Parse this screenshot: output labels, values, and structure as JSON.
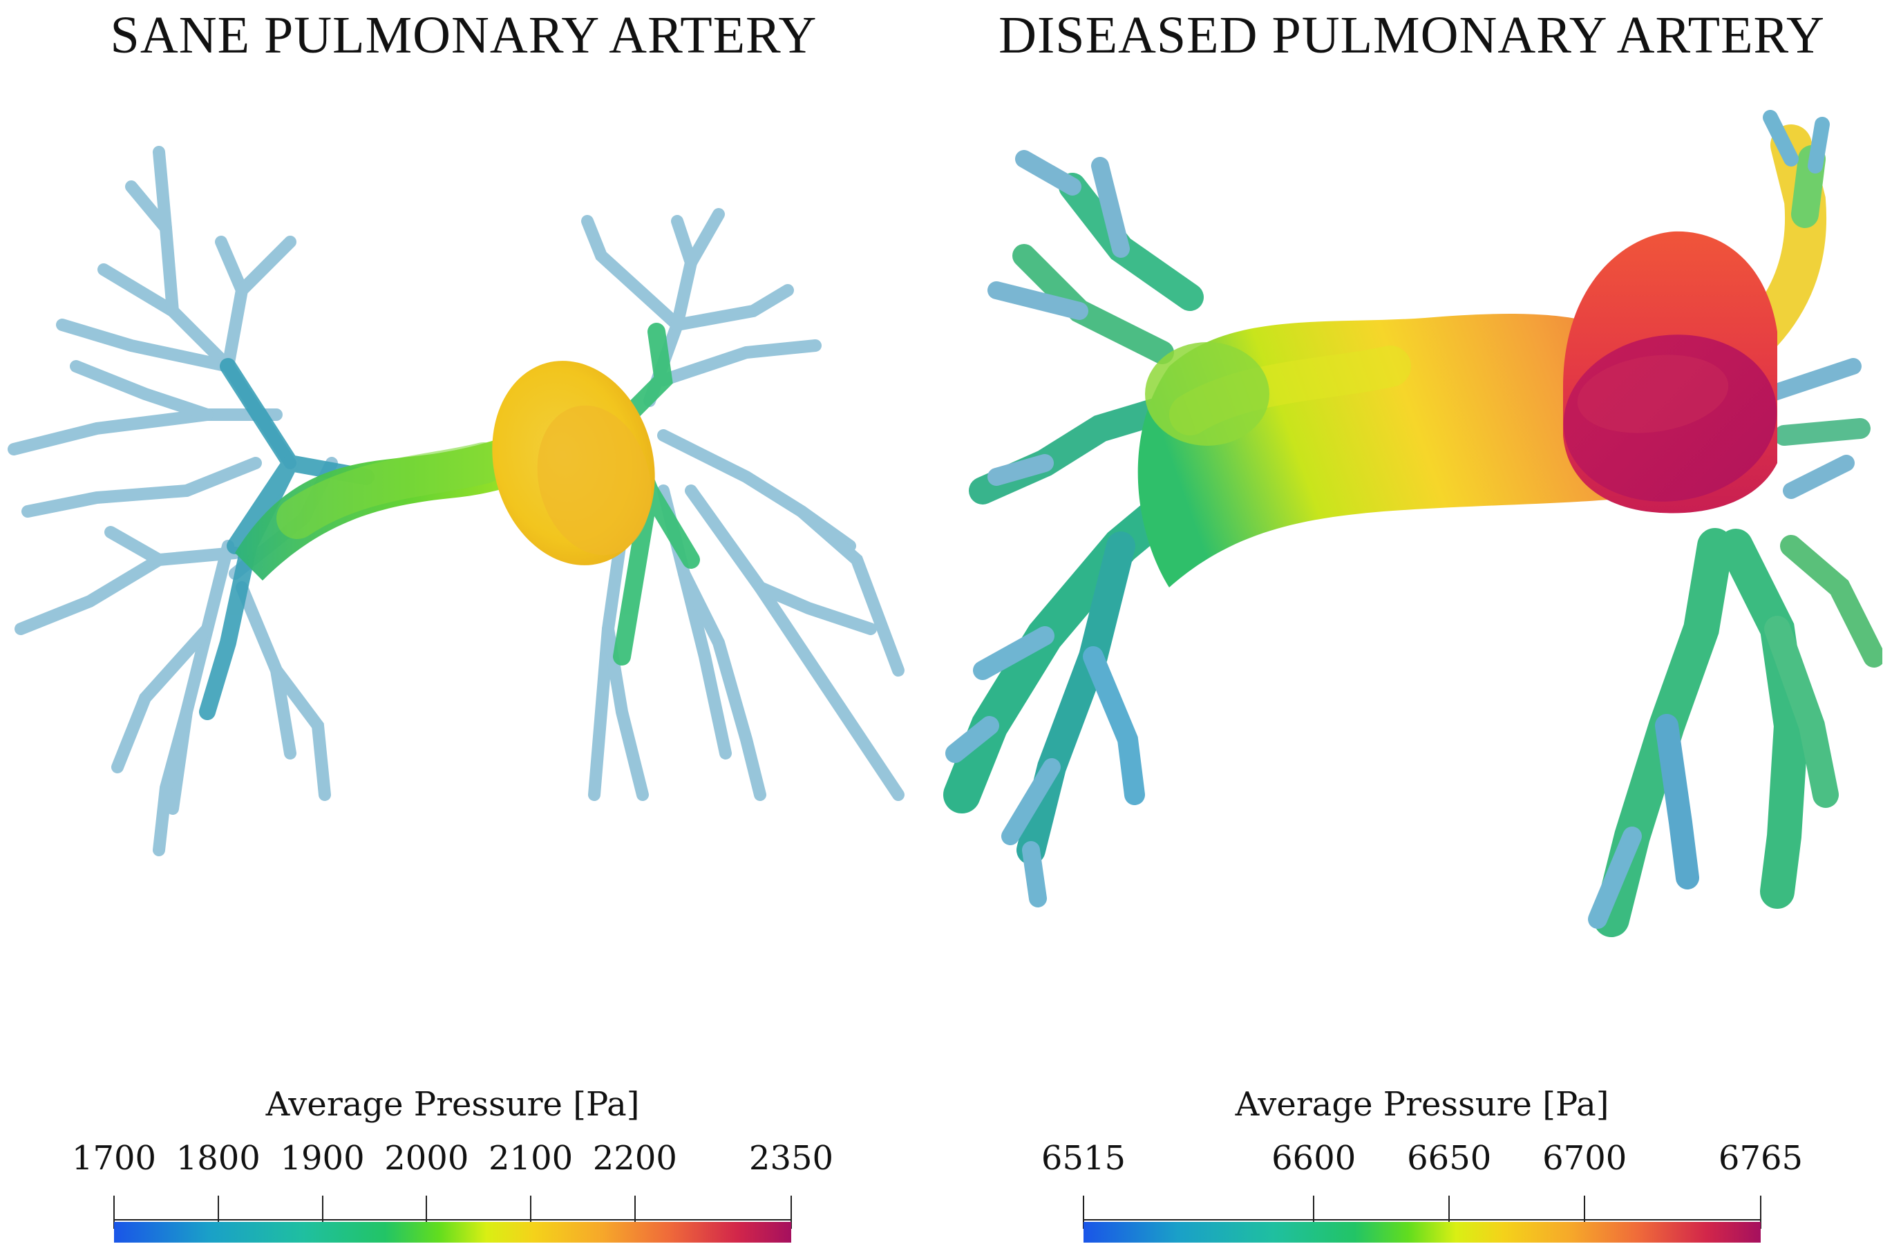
{
  "panels": [
    {
      "title": "SANE PULMONARY ARTERY",
      "colorbar": {
        "title": "Average Pressure [Pa]",
        "min": 1700,
        "max": 2350,
        "ticks": [
          "1700",
          "1800",
          "1900",
          "2000",
          "2100",
          "2200",
          "2350"
        ],
        "tick_values": [
          1700,
          1800,
          1900,
          2000,
          2100,
          2200,
          2350
        ]
      }
    },
    {
      "title": "DISEASED PULMONARY ARTERY",
      "colorbar": {
        "title": "Average Pressure [Pa]",
        "min": 6515,
        "max": 6765,
        "ticks": [
          "6515",
          "6600",
          "6650",
          "6700",
          "6765"
        ],
        "tick_values": [
          6515,
          6600,
          6650,
          6700,
          6765
        ]
      }
    }
  ],
  "colors": {
    "low": "#1a55e8",
    "mid_low": "#1fbfa0",
    "mid": "#62dd1e",
    "mid_high": "#f4d21a",
    "high": "#ef6a3a",
    "max": "#a5105e",
    "vessel_pale": "#9cc8dc"
  }
}
